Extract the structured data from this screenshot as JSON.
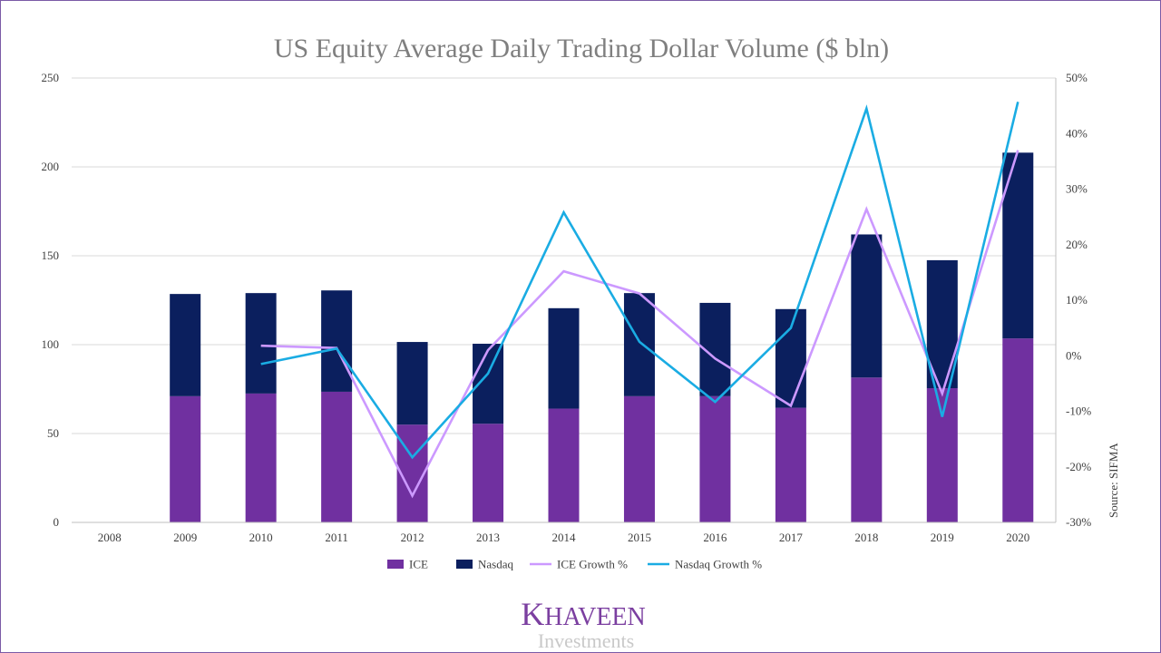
{
  "chart_data": {
    "type": "bar",
    "title": "US Equity Average Daily Trading Dollar Volume ($ bln)",
    "categories": [
      "2008",
      "2009",
      "2010",
      "2011",
      "2012",
      "2013",
      "2014",
      "2015",
      "2016",
      "2017",
      "2018",
      "2019",
      "2020"
    ],
    "stacked": true,
    "y_left": {
      "ylim": [
        0,
        250
      ],
      "ticks": [
        0,
        50,
        100,
        150,
        200,
        250
      ]
    },
    "y_right": {
      "ylim": [
        -30,
        50
      ],
      "ticks": [
        -30,
        -20,
        -10,
        0,
        10,
        20,
        30,
        40,
        50
      ],
      "ticklabels": [
        "-30%",
        "-20%",
        "-10%",
        "0%",
        "10%",
        "20%",
        "30%",
        "40%",
        "50%"
      ]
    },
    "series": [
      {
        "name": "ICE",
        "kind": "bar",
        "axis": "left",
        "color": "#7030a0",
        "values": [
          null,
          71,
          72.5,
          73.5,
          55,
          55.5,
          64,
          71,
          71,
          64.5,
          81.5,
          75.5,
          103.5
        ]
      },
      {
        "name": "Nasdaq",
        "kind": "bar",
        "axis": "left",
        "color": "#0b1f5e",
        "values": [
          null,
          57.5,
          56.5,
          57,
          46.5,
          45,
          56.5,
          58,
          52.5,
          55.5,
          80.5,
          72,
          104.5
        ]
      },
      {
        "name": "ICE Growth %",
        "kind": "line",
        "axis": "right",
        "color": "#cc99ff",
        "values": [
          null,
          null,
          1.8,
          1.4,
          -25.2,
          1,
          15.2,
          11.2,
          -0.5,
          -9,
          26.4,
          -6.8,
          37
        ]
      },
      {
        "name": "Nasdaq Growth %",
        "kind": "line",
        "axis": "right",
        "color": "#1aace3",
        "values": [
          null,
          null,
          -1.5,
          1.3,
          -18.3,
          -3.2,
          25.8,
          2.5,
          -8.3,
          5,
          44.5,
          -11,
          45.7
        ]
      }
    ],
    "legend": {
      "placement": "bottom"
    },
    "grid": true,
    "source_note": "Source: SIFMA"
  },
  "logo": {
    "main": "Khaveen",
    "sub": "Investments"
  }
}
